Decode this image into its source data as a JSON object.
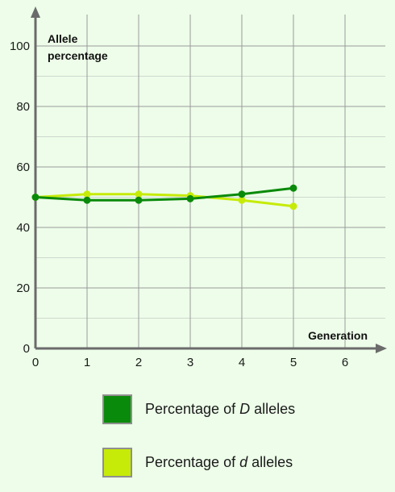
{
  "chart_data": {
    "type": "line",
    "x": [
      0,
      1,
      2,
      3,
      4,
      5
    ],
    "xticks": [
      "0",
      "1",
      "2",
      "3",
      "4",
      "5",
      "6"
    ],
    "yticks": [
      "0",
      "20",
      "40",
      "60",
      "80",
      "100"
    ],
    "xlim": [
      0,
      6
    ],
    "ylim": [
      0,
      100
    ],
    "xlabel": "Generation",
    "ylabel_lines": [
      "Allele",
      "percentage"
    ],
    "grid": true,
    "legend_position": "bottom",
    "series": [
      {
        "key": "D",
        "name_prefix": "Percentage of ",
        "name_symbol": "D",
        "name_suffix": " alleles",
        "color": "#0a8a0a",
        "values": [
          50,
          49,
          49,
          49.5,
          51,
          53
        ]
      },
      {
        "key": "d",
        "name_prefix": "Percentage of ",
        "name_symbol": "d",
        "name_suffix": " alleles",
        "color": "#c6eb08",
        "values": [
          50,
          51,
          51,
          50.5,
          49,
          47
        ]
      }
    ]
  },
  "colors": {
    "background": "#edfde9",
    "grid_major": "#9a9a9a",
    "grid_minor": "#cfd8cf",
    "axis": "#6b6b6b"
  }
}
